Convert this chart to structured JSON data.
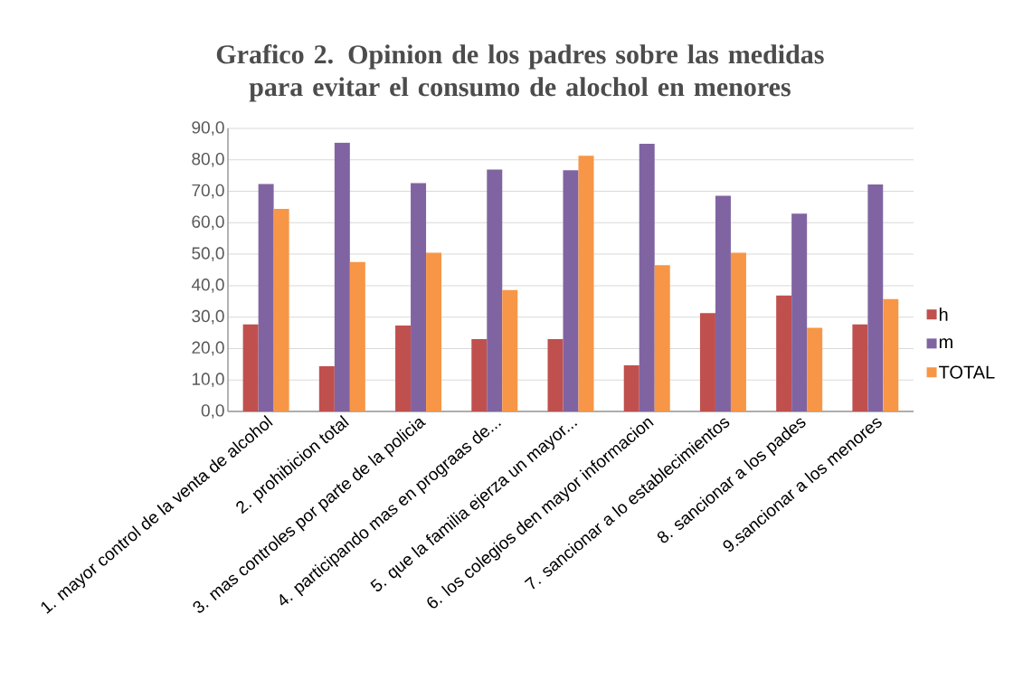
{
  "chart_data": {
    "type": "bar",
    "title": "Grafico 2. Opinion de los padres sobre las medidas para evitar el consumo de alochol en menores",
    "categories": [
      "1. mayor control de la venta de alcohol",
      "2. prohibicion total",
      "3. mas controles por parte de la policia",
      "4. participando mas en prograas de...",
      "5. que la familia ejerza un mayor...",
      "6.  los colegios den mayor informacion",
      "7. sancionar a lo establecimientos",
      "8. sancionar a los pades",
      "9.sancionar a los menores"
    ],
    "series": [
      {
        "name": "h",
        "color": "#c0504d",
        "values": [
          27.7,
          14.4,
          27.3,
          23.0,
          23.0,
          14.7,
          31.3,
          36.9,
          27.7
        ]
      },
      {
        "name": "m",
        "color": "#8064a2",
        "values": [
          72.3,
          85.5,
          72.6,
          76.9,
          76.7,
          85.1,
          68.6,
          62.9,
          72.2
        ]
      },
      {
        "name": "TOTAL",
        "color": "#f79646",
        "values": [
          64.4,
          47.5,
          50.5,
          38.6,
          81.3,
          46.5,
          50.5,
          26.6,
          35.7
        ]
      }
    ],
    "ylim": [
      0,
      90
    ],
    "yticks": [
      {
        "value": 0,
        "label": "0,0"
      },
      {
        "value": 10,
        "label": "10,0"
      },
      {
        "value": 20,
        "label": "20,0"
      },
      {
        "value": 30,
        "label": "30,0"
      },
      {
        "value": 40,
        "label": "40,0"
      },
      {
        "value": 50,
        "label": "50,0"
      },
      {
        "value": 60,
        "label": "60,0"
      },
      {
        "value": 70,
        "label": "70,0"
      },
      {
        "value": 80,
        "label": "80,0"
      },
      {
        "value": 90,
        "label": "90,0"
      }
    ],
    "grid": "y",
    "legend": "right"
  }
}
